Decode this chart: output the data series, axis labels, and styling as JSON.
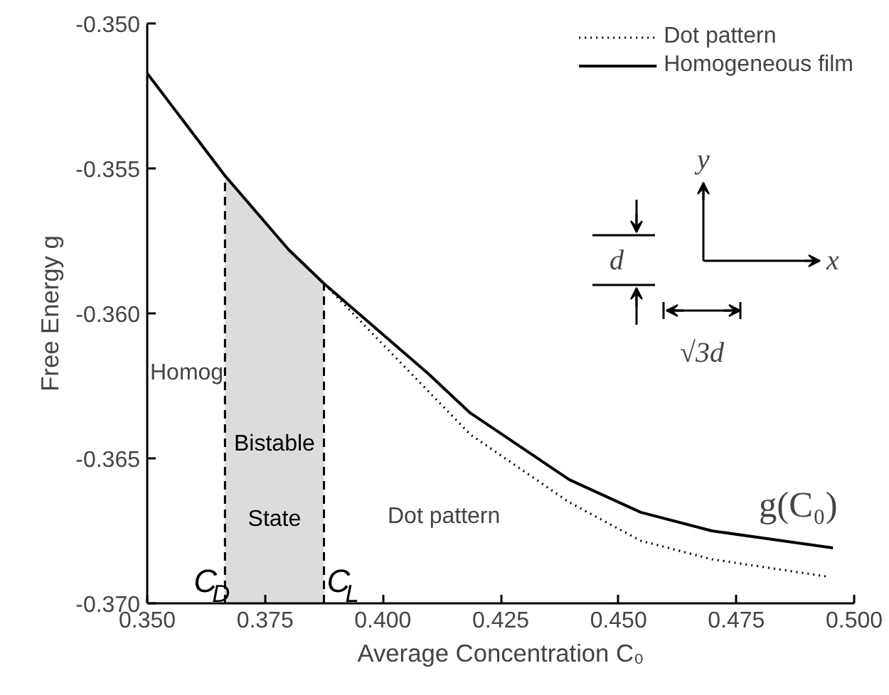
{
  "chart_data": {
    "type": "line",
    "xlabel": "Average Concentration C₀",
    "ylabel": "Free Energy g",
    "xlim": [
      0.35,
      0.5
    ],
    "ylim": [
      -0.37,
      -0.35
    ],
    "xticks": [
      {
        "value": 0.35,
        "label": "0.350"
      },
      {
        "value": 0.375,
        "label": "0.375"
      },
      {
        "value": 0.4,
        "label": "0.400"
      },
      {
        "value": 0.425,
        "label": "0.425"
      },
      {
        "value": 0.45,
        "label": "0.450"
      },
      {
        "value": 0.475,
        "label": "0.475"
      },
      {
        "value": 0.5,
        "label": "0.500"
      }
    ],
    "yticks": [
      {
        "value": -0.37,
        "label": "-0.370"
      },
      {
        "value": -0.365,
        "label": "-0.365"
      },
      {
        "value": -0.36,
        "label": "-0.360"
      },
      {
        "value": -0.355,
        "label": "-0.355"
      },
      {
        "value": -0.35,
        "label": "-0.350"
      }
    ],
    "grid": false,
    "legend": "top right",
    "marker": "none",
    "series": [
      {
        "name": "Dot pattern",
        "color": "#000000",
        "line_style": "dotted",
        "x": [
          0.3665,
          0.38,
          0.3875,
          0.4185,
          0.4396,
          0.4547,
          0.4698,
          0.494
        ],
        "values": [
          -0.35525,
          -0.3578,
          -0.35897,
          -0.36417,
          -0.36652,
          -0.36784,
          -0.36848,
          -0.36907
        ]
      },
      {
        "name": "Homogeneous film",
        "color": "#000000",
        "line_style": "solid",
        "x": [
          0.35,
          0.3665,
          0.38,
          0.3875,
          0.4095,
          0.4185,
          0.4396,
          0.4547,
          0.4698,
          0.4955
        ],
        "values": [
          -0.35172,
          -0.35525,
          -0.3578,
          -0.35897,
          -0.36206,
          -0.36343,
          -0.36574,
          -0.36686,
          -0.3675,
          -0.36809
        ]
      }
    ],
    "bands": [
      {
        "axis": "x",
        "from": 0.3665,
        "to": 0.3875,
        "label": "Bistable State",
        "color": "#dcdcdc"
      }
    ],
    "ref_lines": [
      {
        "axis": "x",
        "value": 0.3665,
        "label": "C$_{D}$",
        "line_style": "dashed"
      },
      {
        "axis": "x",
        "value": 0.3875,
        "label": "C$_{L}$",
        "line_style": "dashed"
      }
    ],
    "annotations": [
      "Homog",
      "Dot pattern",
      "g(C₀)",
      "y",
      "x",
      "d",
      "√3d"
    ]
  }
}
